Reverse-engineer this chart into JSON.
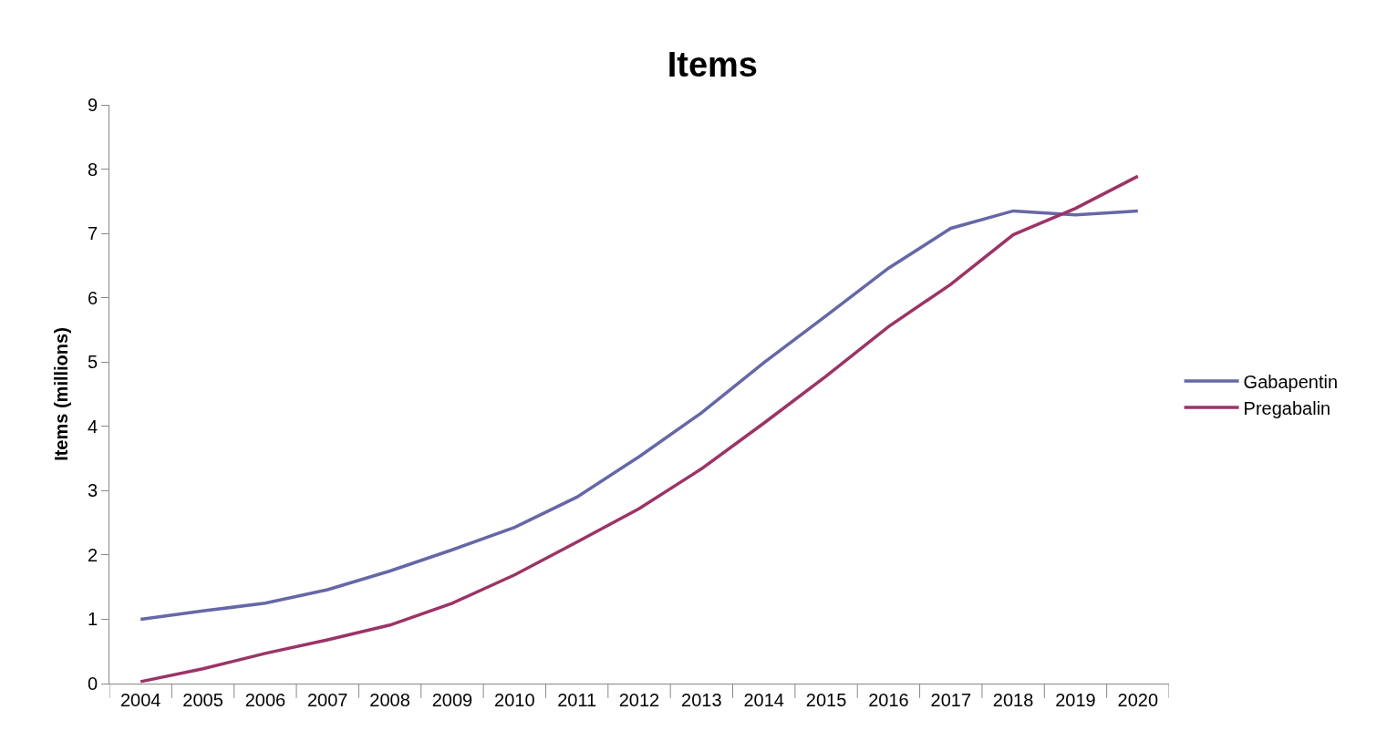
{
  "chart_data": {
    "type": "line",
    "title": "Items",
    "ylabel": "Items (millions)",
    "categories": [
      "2004",
      "2005",
      "2006",
      "2007",
      "2008",
      "2009",
      "2010",
      "2011",
      "2012",
      "2013",
      "2014",
      "2015",
      "2016",
      "2017",
      "2018",
      "2019",
      "2020"
    ],
    "series": [
      {
        "name": "Gabapentin",
        "color": "#6667a6",
        "values": [
          1.0,
          1.13,
          1.25,
          1.46,
          1.75,
          2.08,
          2.43,
          2.9,
          3.53,
          4.21,
          4.99,
          5.72,
          6.46,
          7.08,
          7.35,
          7.29,
          7.35
        ]
      },
      {
        "name": "Pregabalin",
        "color": "#9b3466",
        "values": [
          0.03,
          0.23,
          0.47,
          0.68,
          0.91,
          1.25,
          1.69,
          2.2,
          2.72,
          3.34,
          4.05,
          4.78,
          5.55,
          6.21,
          6.98,
          7.39,
          7.89
        ]
      }
    ],
    "ylim": [
      0,
      9
    ],
    "yticks": [
      0,
      1,
      2,
      3,
      4,
      5,
      6,
      7,
      8,
      9
    ],
    "legend": "right",
    "marker": "none",
    "line_style": "solid"
  }
}
